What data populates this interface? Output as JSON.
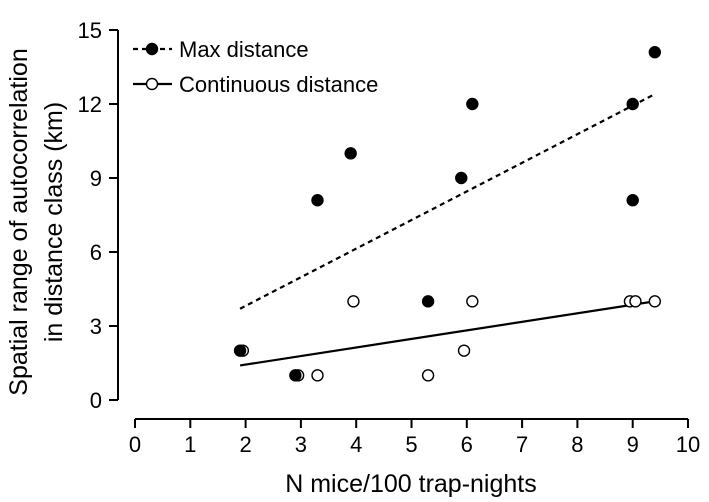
{
  "chart_data": {
    "type": "scatter",
    "xlabel": "N mice/100 trap-nights",
    "ylabel_lines": [
      "Spatial range of autocorrelation",
      "in distance class (km)"
    ],
    "xlim": [
      0,
      10
    ],
    "ylim": [
      0,
      15
    ],
    "xticks": [
      0,
      1,
      2,
      3,
      4,
      5,
      6,
      7,
      8,
      9,
      10
    ],
    "yticks": [
      0,
      3,
      6,
      9,
      12,
      15
    ],
    "grid": false,
    "legend_position": "top-left",
    "series": [
      {
        "name": "Max distance",
        "marker": "filled-circle",
        "line": "dotted",
        "color": "#000000",
        "points": [
          {
            "x": 1.9,
            "y": 2
          },
          {
            "x": 2.9,
            "y": 1
          },
          {
            "x": 3.3,
            "y": 8.1
          },
          {
            "x": 3.9,
            "y": 10
          },
          {
            "x": 5.3,
            "y": 4
          },
          {
            "x": 5.9,
            "y": 9
          },
          {
            "x": 6.1,
            "y": 12
          },
          {
            "x": 9.0,
            "y": 12
          },
          {
            "x": 9.0,
            "y": 8.1
          },
          {
            "x": 9.4,
            "y": 14.1
          }
        ],
        "fit": {
          "x": [
            1.9,
            9.4
          ],
          "y": [
            3.7,
            12.4
          ]
        }
      },
      {
        "name": "Continuous distance",
        "marker": "open-circle",
        "line": "solid",
        "color": "#000000",
        "points": [
          {
            "x": 1.95,
            "y": 2
          },
          {
            "x": 2.95,
            "y": 1
          },
          {
            "x": 3.3,
            "y": 1
          },
          {
            "x": 3.95,
            "y": 4
          },
          {
            "x": 5.3,
            "y": 1
          },
          {
            "x": 5.95,
            "y": 2
          },
          {
            "x": 6.1,
            "y": 4
          },
          {
            "x": 8.95,
            "y": 4
          },
          {
            "x": 9.05,
            "y": 4
          },
          {
            "x": 9.4,
            "y": 4
          }
        ],
        "fit": {
          "x": [
            1.9,
            9.4
          ],
          "y": [
            1.4,
            4.0
          ]
        }
      }
    ]
  }
}
